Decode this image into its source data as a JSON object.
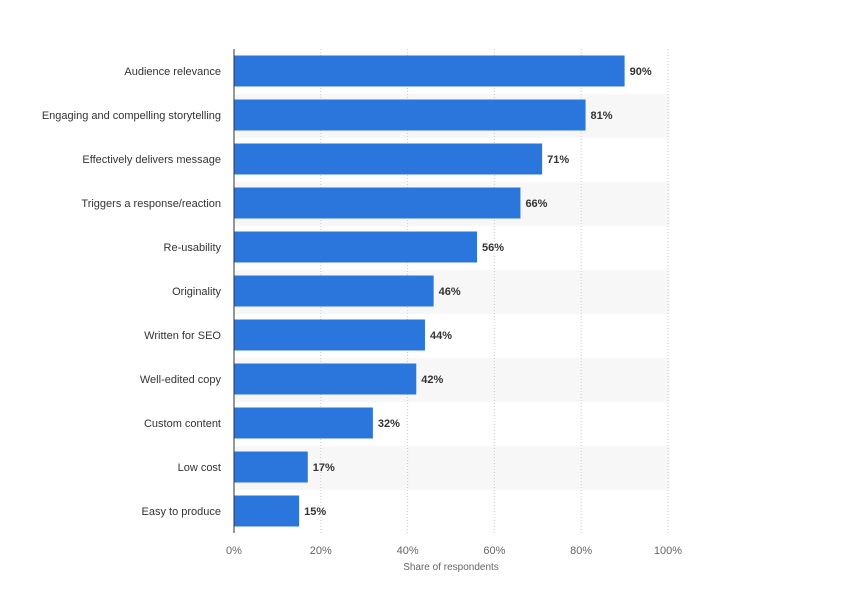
{
  "chart_data": {
    "type": "bar",
    "orientation": "horizontal",
    "categories": [
      "Audience relevance",
      "Engaging and compelling storytelling",
      "Effectively delivers message",
      "Triggers a response/reaction",
      "Re-usability",
      "Originality",
      "Written for SEO",
      "Well-edited copy",
      "Custom content",
      "Low cost",
      "Easy to produce"
    ],
    "values": [
      90,
      81,
      71,
      66,
      56,
      46,
      44,
      42,
      32,
      17,
      15
    ],
    "value_labels": [
      "90%",
      "81%",
      "71%",
      "66%",
      "56%",
      "46%",
      "44%",
      "42%",
      "32%",
      "17%",
      "15%"
    ],
    "xticks": [
      0,
      20,
      40,
      60,
      80,
      100
    ],
    "xtick_labels": [
      "0%",
      "20%",
      "40%",
      "60%",
      "80%",
      "100%"
    ],
    "xlabel": "Share of respondents",
    "ylabel": "",
    "xlim": [
      0,
      100
    ],
    "grid": true,
    "bar_color": "#2a76dd",
    "alt_row_color": "#f7f7f7"
  }
}
